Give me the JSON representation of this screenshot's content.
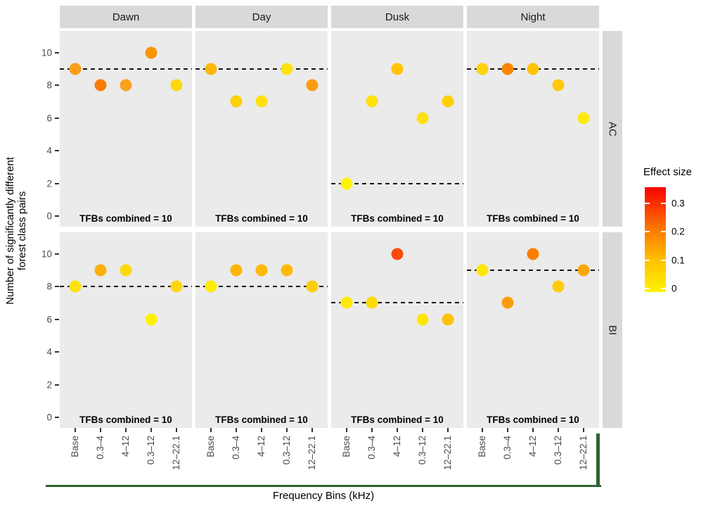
{
  "figure": {
    "y_axis_title_line1": "Number of significantly different",
    "y_axis_title_line2": "forest class pairs",
    "x_axis_title": "Frequency Bins (kHz)",
    "y_ticks": [
      "10",
      "8",
      "6",
      "4",
      "2",
      "0"
    ]
  },
  "legend": {
    "title": "Effect size",
    "ticks": [
      "0.3",
      "0.2",
      "0.1",
      "0"
    ],
    "gradient": [
      "#FA0000",
      "#FB7800",
      "#FFC100",
      "#FEF400"
    ]
  },
  "colors": {
    "panel_bg": "#EBEBEB",
    "strip_bg": "#D9D9D9",
    "tick_text": "#4d4d4d",
    "dashed_line": "#141414",
    "green_line": "#2F6132"
  },
  "chart_data": {
    "type": "scatter",
    "facet_columns": [
      "Dawn",
      "Day",
      "Dusk",
      "Night"
    ],
    "facet_rows": [
      "AC",
      "BI"
    ],
    "categories": [
      "Base",
      "0.3–4",
      "4–12",
      "0.3–12",
      "12–22.1"
    ],
    "ylim": [
      0,
      10
    ],
    "annotation": "TFBs combined = 10",
    "color_scale": {
      "name": "Effect size",
      "range": [
        0,
        0.3
      ],
      "low": "#FEF400",
      "high": "#FA0000"
    },
    "panels": [
      {
        "row": "AC",
        "col": "Dawn",
        "dashed_line_y": 9,
        "values": [
          9,
          8,
          8,
          10,
          8
        ],
        "point_colors": [
          "#FB9E1B",
          "#F97C02",
          "#FBA01F",
          "#FB9303",
          "#FFD60F"
        ]
      },
      {
        "row": "AC",
        "col": "Day",
        "dashed_line_y": 9,
        "values": [
          9,
          7,
          7,
          9,
          8
        ],
        "point_colors": [
          "#FCB70C",
          "#FFCF08",
          "#FFE10D",
          "#FFE20F",
          "#FB9D14"
        ]
      },
      {
        "row": "AC",
        "col": "Dusk",
        "dashed_line_y": 2,
        "values": [
          2,
          7,
          9,
          6,
          7
        ],
        "point_colors": [
          "#FCF403",
          "#FFE10C",
          "#FFC406",
          "#FFE013",
          "#FFD008"
        ]
      },
      {
        "row": "AC",
        "col": "Night",
        "dashed_line_y": 9,
        "values": [
          9,
          9,
          9,
          8,
          6
        ],
        "point_colors": [
          "#FFD20D",
          "#FB8604",
          "#FFC408",
          "#FFC90D",
          "#FFEB0B"
        ]
      },
      {
        "row": "BI",
        "col": "Dawn",
        "dashed_line_y": 8,
        "values": [
          8,
          9,
          9,
          6,
          8
        ],
        "point_colors": [
          "#FFE20A",
          "#FCAF08",
          "#FFD80C",
          "#FFF007",
          "#FFD60E"
        ]
      },
      {
        "row": "BI",
        "col": "Day",
        "dashed_line_y": 8,
        "values": [
          8,
          9,
          9,
          9,
          8
        ],
        "point_colors": [
          "#FFEC04",
          "#FFB508",
          "#FFB90A",
          "#FFBA06",
          "#FFCD0B"
        ]
      },
      {
        "row": "BI",
        "col": "Dusk",
        "dashed_line_y": 7,
        "values": [
          7,
          7,
          10,
          6,
          6
        ],
        "point_colors": [
          "#FFE908",
          "#FFDB07",
          "#FB4A0D",
          "#FFE607",
          "#FFC206"
        ]
      },
      {
        "row": "BI",
        "col": "Night",
        "dashed_line_y": 9,
        "values": [
          9,
          7,
          10,
          8,
          9
        ],
        "point_colors": [
          "#FFE607",
          "#FB9D09",
          "#FC7E00",
          "#FFCC09",
          "#FCA80C"
        ]
      }
    ]
  }
}
